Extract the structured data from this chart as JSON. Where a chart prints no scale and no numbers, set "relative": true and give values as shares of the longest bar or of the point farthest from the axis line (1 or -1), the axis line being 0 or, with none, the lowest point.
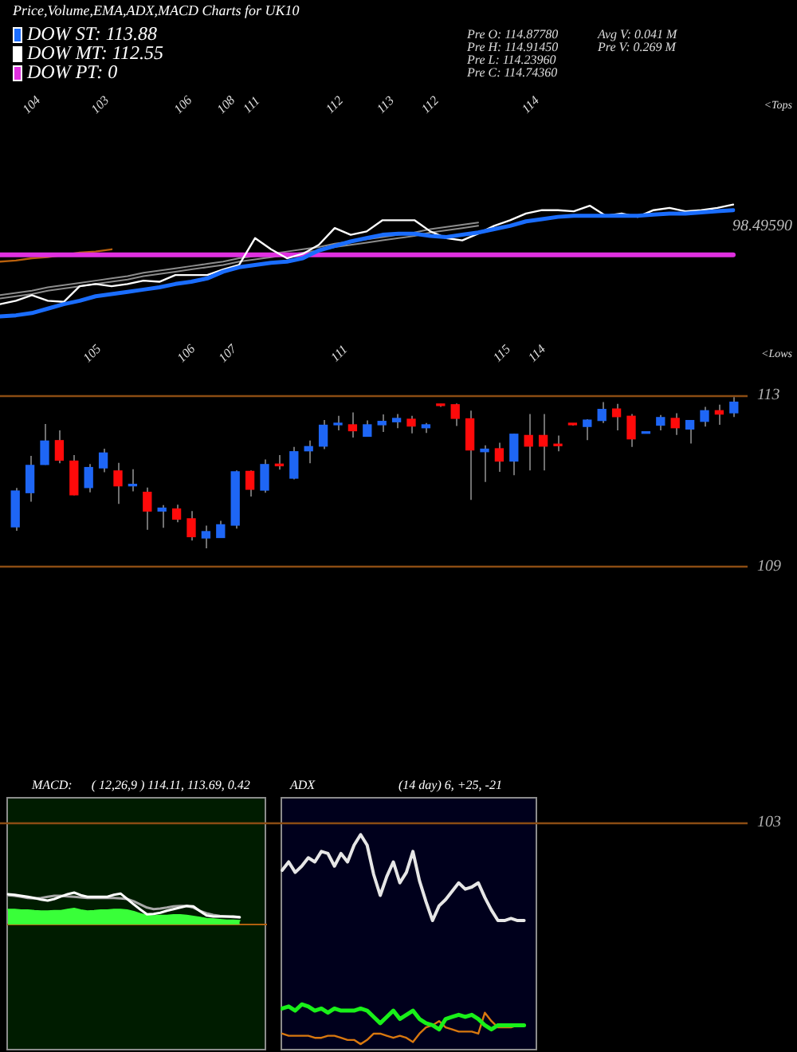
{
  "chart_data": [
    {
      "type": "line",
      "title": "Price,Volume,EMA,ADX,MACD Charts for UK10",
      "relative": true,
      "categories": [
        null,
        null,
        null,
        null,
        null,
        null,
        null,
        null,
        null,
        null,
        null,
        null,
        null,
        null,
        null,
        null,
        null,
        null,
        null,
        null,
        null,
        null,
        null,
        null,
        null,
        null,
        null,
        null,
        null,
        null,
        null,
        null,
        null,
        null,
        null,
        null,
        null,
        null,
        null,
        null,
        null,
        null,
        null,
        null,
        null,
        null,
        null
      ],
      "series": [
        {
          "name": "DOW ST: 113.88",
          "color": "#1a6dff",
          "values": [
            0,
            0.01,
            0.03,
            0.07,
            0.11,
            0.14,
            0.18,
            0.2,
            0.22,
            0.24,
            0.26,
            0.29,
            0.31,
            0.34,
            0.4,
            0.44,
            0.46,
            0.48,
            0.49,
            0.52,
            0.59,
            0.63,
            0.67,
            0.7,
            0.73,
            0.74,
            0.74,
            0.72,
            0.71,
            0.73,
            0.75,
            0.78,
            0.81,
            0.85,
            0.87,
            0.89,
            0.9,
            0.9,
            0.9,
            0.9,
            0.9,
            0.91,
            0.92,
            0.92,
            0.93,
            0.94,
            0.95
          ]
        },
        {
          "name": "DOW MT: 112.55",
          "color": "#ffffff",
          "values": [
            0.11,
            0.14,
            0.19,
            0.14,
            0.13,
            0.27,
            0.29,
            0.27,
            0.29,
            0.32,
            0.31,
            0.37,
            0.37,
            0.37,
            0.42,
            0.46,
            0.7,
            0.6,
            0.52,
            0.56,
            0.64,
            0.79,
            0.73,
            0.76,
            0.86,
            0.86,
            0.86,
            0.76,
            0.7,
            0.68,
            0.74,
            0.81,
            0.86,
            0.92,
            0.95,
            0.95,
            0.94,
            0.99,
            0.9,
            0.92,
            0.89,
            0.95,
            0.97,
            0.94,
            0.95,
            0.97,
            1
          ]
        },
        {
          "name": "DOW PT: 0",
          "color": "#e030e0",
          "values": [
            0.55,
            0.55,
            0.55,
            0.55,
            0.55,
            0.55,
            0.55,
            0.55,
            0.55,
            0.55,
            0.55,
            0.55,
            0.55,
            0.55,
            0.55,
            0.55,
            0.55,
            0.55,
            0.55,
            0.55,
            0.55,
            0.55,
            0.55,
            0.55,
            0.55,
            0.55,
            0.55,
            0.55,
            0.55,
            0.55,
            0.55,
            0.55,
            0.55,
            0.55,
            0.55,
            0.55,
            0.55,
            0.55,
            0.55,
            0.55,
            0.55,
            0.55,
            0.55,
            0.55,
            0.55,
            0.55,
            0.55
          ]
        },
        {
          "color": "#8c8c8c",
          "values": [
            0.19,
            0.21,
            0.23,
            0.26,
            0.28,
            0.3,
            0.32,
            0.34,
            0.36,
            0.39,
            0.41,
            0.43,
            0.45,
            0.47,
            0.49,
            0.52,
            0.54,
            0.56,
            0.58,
            0.6,
            0.62,
            0.65,
            0.67,
            0.69,
            0.71,
            0.73,
            0.75,
            0.78,
            0.8,
            0.82,
            0.84,
            null,
            null,
            null,
            null,
            null,
            null,
            null,
            null,
            null,
            null,
            null,
            null,
            null,
            null,
            null,
            null
          ]
        },
        {
          "color": "#8c8c8c",
          "values": [
            0.16,
            0.18,
            0.2,
            0.23,
            0.25,
            0.27,
            0.29,
            0.31,
            0.33,
            0.36,
            0.38,
            0.4,
            0.42,
            0.44,
            0.46,
            0.49,
            0.51,
            0.53,
            0.55,
            0.57,
            0.59,
            0.62,
            0.64,
            0.66,
            0.68,
            0.7,
            0.72,
            0.75,
            0.77,
            0.79,
            0.81,
            null,
            null,
            null,
            null,
            null,
            null,
            null,
            null,
            null,
            null,
            null,
            null,
            null,
            null,
            null,
            null
          ]
        },
        {
          "color": "#b8600c",
          "values": [
            0.49,
            0.5,
            0.52,
            0.53,
            0.55,
            0.57,
            0.58,
            0.6,
            null,
            null,
            null,
            null,
            null,
            null,
            null,
            null,
            null,
            null,
            null,
            null,
            null,
            null,
            null,
            null,
            null,
            null,
            null,
            null,
            null,
            null,
            null,
            null,
            null,
            null,
            null,
            null,
            null,
            null,
            null,
            null,
            null,
            null,
            null,
            null,
            null,
            null,
            null
          ]
        }
      ],
      "legend": "top left",
      "annotations": [
        "Pre O: 114.87780",
        "Pre H: 114.91450",
        "Pre L: 114.23960",
        "Pre C: 114.74360",
        "Avg V: 0.041 M",
        "Pre V: 0.269 M",
        "104",
        "103",
        "106",
        "108",
        "111",
        "112",
        "113",
        "112",
        "114",
        "<Tops",
        "105",
        "106",
        "107",
        "111",
        "115",
        "114",
        "<Lows",
        "98.49590"
      ]
    },
    {
      "type": "candlestick",
      "categories": [
        null,
        null,
        null,
        null,
        null,
        null,
        null,
        null,
        null,
        null,
        null,
        null,
        null,
        null,
        null,
        null,
        null,
        null,
        null,
        null,
        null,
        null,
        null,
        null,
        null,
        null,
        null,
        null,
        null,
        null,
        null,
        null,
        null,
        null,
        null,
        null,
        null,
        null,
        null,
        null,
        null,
        null,
        null,
        null,
        null,
        null,
        null,
        null,
        null,
        null
      ],
      "ohlc": [
        [
          109.92,
          110.83,
          109.83,
          110.76
        ],
        [
          110.72,
          111.58,
          110.51,
          111.36
        ],
        [
          111.38,
          112.33,
          111.37,
          111.93
        ],
        [
          111.94,
          112.18,
          111.41,
          111.48
        ],
        [
          111.46,
          111.6,
          110.66,
          110.67
        ],
        [
          110.84,
          111.39,
          110.73,
          111.31
        ],
        [
          111.3,
          111.75,
          111.2,
          111.65
        ],
        [
          111.23,
          111.42,
          110.46,
          110.88
        ],
        [
          110.88,
          111.27,
          110.75,
          110.9
        ],
        [
          110.73,
          110.84,
          109.85,
          110.29
        ],
        [
          110.29,
          110.43,
          109.9,
          110.36
        ],
        [
          110.34,
          110.44,
          110.03,
          110.1
        ],
        [
          110.11,
          110.29,
          109.6,
          109.69
        ],
        [
          109.66,
          109.95,
          109.42,
          109.81
        ],
        [
          109.67,
          110.06,
          109.67,
          109.97
        ],
        [
          109.96,
          111.24,
          109.88,
          111.21
        ],
        [
          111.22,
          111.24,
          110.63,
          110.8
        ],
        [
          110.78,
          111.5,
          110.72,
          111.38
        ],
        [
          111.39,
          111.6,
          111.26,
          111.35
        ],
        [
          111.06,
          111.79,
          111.03,
          111.68
        ],
        [
          111.7,
          111.94,
          111.41,
          111.8
        ],
        [
          111.81,
          112.42,
          111.74,
          112.3
        ],
        [
          112.31,
          112.52,
          112.18,
          112.33
        ],
        [
          112.31,
          112.6,
          112.01,
          112.17
        ],
        [
          112.04,
          112.41,
          112.04,
          112.31
        ],
        [
          112.31,
          112.55,
          112.14,
          112.39
        ],
        [
          112.38,
          112.56,
          112.23,
          112.46
        ],
        [
          112.44,
          112.52,
          112.11,
          112.28
        ],
        [
          112.24,
          112.35,
          112.12,
          112.31
        ],
        [
          112.78,
          112.8,
          112.73,
          112.76
        ],
        [
          112.78,
          112.81,
          112.28,
          112.46
        ],
        [
          112.45,
          112.64,
          110.55,
          111.72
        ],
        [
          111.68,
          111.83,
          110.97,
          111.74
        ],
        [
          111.75,
          111.89,
          111.21,
          111.46
        ],
        [
          111.46,
          112.1,
          111.13,
          112.09
        ],
        [
          112.06,
          112.56,
          111.24,
          111.81
        ],
        [
          112.06,
          112.56,
          111.24,
          111.81
        ],
        [
          111.85,
          112.06,
          111.69,
          111.82
        ],
        [
          112.33,
          112.34,
          112.29,
          112.31
        ],
        [
          112.27,
          112.44,
          111.95,
          112.42
        ],
        [
          112.41,
          112.84,
          112.35,
          112.67
        ],
        [
          112.68,
          112.8,
          112.18,
          112.5
        ],
        [
          112.51,
          112.56,
          111.79,
          111.98
        ],
        [
          112.11,
          112.13,
          112.11,
          112.13
        ],
        [
          112.3,
          112.54,
          112.18,
          112.48
        ],
        [
          112.46,
          112.58,
          112.07,
          112.24
        ],
        [
          112.21,
          112.42,
          111.87,
          112.41
        ],
        [
          112.39,
          112.73,
          112.27,
          112.64
        ],
        [
          112.64,
          112.78,
          112.31,
          112.56
        ],
        [
          112.59,
          112.96,
          112.49,
          112.84
        ]
      ],
      "colors": [
        "#1e66f5",
        "#1e66f5",
        "#1e66f5",
        "#ff0a0a",
        "#ff0a0a",
        "#1e66f5",
        "#1e66f5",
        "#ff0a0a",
        "#1e66f5",
        "#ff0a0a",
        "#1e66f5",
        "#ff0a0a",
        "#ff0a0a",
        "#1e66f5",
        "#1e66f5",
        "#1e66f5",
        "#ff0a0a",
        "#1e66f5",
        "#ff0a0a",
        "#1e66f5",
        "#1e66f5",
        "#1e66f5",
        "#1e66f5",
        "#ff0a0a",
        "#1e66f5",
        "#1e66f5",
        "#1e66f5",
        "#ff0a0a",
        "#1e66f5",
        "#ff0a0a",
        "#ff0a0a",
        "#ff0a0a",
        "#1e66f5",
        "#ff0a0a",
        "#1e66f5",
        "#ff0a0a",
        "#ff0a0a",
        "#ff0a0a",
        "#ff0a0a",
        "#1e66f5",
        "#1e66f5",
        "#ff0a0a",
        "#ff0a0a",
        "#1e66f5",
        "#1e66f5",
        "#ff0a0a",
        "#1e66f5",
        "#1e66f5",
        "#ff0a0a",
        "#1e66f5"
      ],
      "ylim": [
        103,
        113
      ],
      "yticks": [
        103,
        109,
        113
      ],
      "ref_lines": [
        {
          "axis": "y",
          "value": 113,
          "color": "#8b4c13"
        },
        {
          "axis": "y",
          "value": 109,
          "color": "#8b4c13"
        },
        {
          "axis": "y",
          "value": 103,
          "color": "#8b4c13"
        }
      ]
    },
    {
      "type": "line",
      "title": "MACD:",
      "subtitle": "( 12,26,9 ) 114.11, 113.69, 0.42",
      "relative": true,
      "categories": [
        null,
        null,
        null,
        null,
        null,
        null,
        null,
        null,
        null,
        null,
        null,
        null,
        null,
        null,
        null,
        null,
        null,
        null,
        null,
        null,
        null,
        null,
        null,
        null,
        null,
        null,
        null,
        null,
        null,
        null,
        null,
        null,
        null,
        null,
        null,
        null,
        null,
        null,
        null,
        null
      ],
      "series": [
        {
          "type": "area",
          "color": "#39ff39",
          "values": [
            0.47,
            0.47,
            0.45,
            0.45,
            0.43,
            0.42,
            0.42,
            0.43,
            0.43,
            0.47,
            0.5,
            0.45,
            0.42,
            0.43,
            0.45,
            0.45,
            0.47,
            0.47,
            0.45,
            0.4,
            0.33,
            0.28,
            0.27,
            0.28,
            0.28,
            0.3,
            0.3,
            0.28,
            0.25,
            0.22,
            0.18,
            0.17,
            0.15,
            0.13,
            0.13,
            0.12,
            null,
            null,
            null,
            null
          ]
        },
        {
          "type": "line",
          "color": "#ffffff",
          "values": [
            0.95,
            0.93,
            0.9,
            0.87,
            0.83,
            0.78,
            0.75,
            0.8,
            0.88,
            0.95,
            1,
            0.92,
            0.87,
            0.87,
            0.87,
            0.87,
            0.93,
            0.97,
            0.8,
            0.63,
            0.47,
            0.32,
            0.33,
            0.37,
            0.43,
            0.48,
            0.53,
            0.58,
            0.57,
            0.42,
            0.28,
            0.25,
            0.25,
            0.25,
            0.25,
            0.23,
            null,
            null,
            null,
            null
          ]
        },
        {
          "type": "line",
          "color": "#a8a8a8",
          "values": [
            0.92,
            0.9,
            0.87,
            0.83,
            0.82,
            0.83,
            0.87,
            0.9,
            0.9,
            0.88,
            0.87,
            0.85,
            0.83,
            0.83,
            0.83,
            0.83,
            0.83,
            0.82,
            0.8,
            0.73,
            0.63,
            0.53,
            0.48,
            0.5,
            0.53,
            0.57,
            0.58,
            0.58,
            0.53,
            0.43,
            0.35,
            0.3,
            0.27,
            0.25,
            0.23,
            0.22,
            null,
            null,
            null,
            null
          ]
        }
      ]
    },
    {
      "type": "line",
      "title": "ADX",
      "subtitle": "(14 day) 6, +25, -21",
      "relative": true,
      "categories": [
        null,
        null,
        null,
        null,
        null,
        null,
        null,
        null,
        null,
        null,
        null,
        null,
        null,
        null,
        null,
        null,
        null,
        null,
        null,
        null,
        null,
        null,
        null,
        null,
        null,
        null,
        null,
        null,
        null,
        null,
        null,
        null,
        null,
        null,
        null,
        null,
        null,
        null,
        null,
        null
      ],
      "series": [
        {
          "color": "#e6e6e6",
          "values": [
            0.83,
            0.87,
            0.82,
            0.85,
            0.89,
            0.87,
            0.92,
            0.91,
            0.85,
            0.91,
            0.87,
            0.95,
            1,
            0.95,
            0.81,
            0.71,
            0.8,
            0.87,
            0.77,
            0.82,
            0.92,
            0.78,
            0.68,
            0.59,
            0.66,
            0.69,
            0.73,
            0.77,
            0.74,
            0.75,
            0.77,
            0.7,
            0.64,
            0.59,
            0.59,
            0.6,
            0.59,
            0.59,
            null,
            null
          ]
        },
        {
          "color": "#19f019",
          "values": [
            0.17,
            0.18,
            0.16,
            0.19,
            0.18,
            0.16,
            0.17,
            0.15,
            0.17,
            0.16,
            0.16,
            0.16,
            0.17,
            0.16,
            0.13,
            0.1,
            0.13,
            0.16,
            0.12,
            0.14,
            0.16,
            0.12,
            0.1,
            0.09,
            0.07,
            0.12,
            0.13,
            0.14,
            0.13,
            0.14,
            0.12,
            0.09,
            0.07,
            0.09,
            0.09,
            0.09,
            0.09,
            0.09,
            null,
            null
          ]
        },
        {
          "color": "#d9780f",
          "values": [
            0.05,
            0.04,
            0.04,
            0.04,
            0.04,
            0.03,
            0.03,
            0.04,
            0.04,
            0.03,
            0.02,
            0.02,
            0,
            0.02,
            0.05,
            0.05,
            0.04,
            0.03,
            0.04,
            0.03,
            0.01,
            0.05,
            0.08,
            0.09,
            0.11,
            0.08,
            0.07,
            0.06,
            0.06,
            0.06,
            0.05,
            0.15,
            0.11,
            0.08,
            0.08,
            0.08,
            0.09,
            0.09,
            null,
            null
          ]
        }
      ]
    }
  ]
}
